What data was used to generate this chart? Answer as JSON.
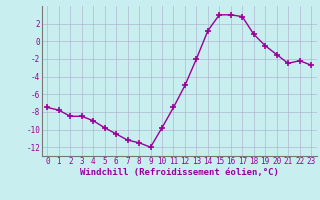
{
  "x": [
    0,
    1,
    2,
    3,
    4,
    5,
    6,
    7,
    8,
    9,
    10,
    11,
    12,
    13,
    14,
    15,
    16,
    17,
    18,
    19,
    20,
    21,
    22,
    23
  ],
  "y": [
    -7.5,
    -7.8,
    -8.5,
    -8.5,
    -9.0,
    -9.8,
    -10.5,
    -11.2,
    -11.5,
    -12.0,
    -9.8,
    -7.5,
    -5.0,
    -2.0,
    1.2,
    3.0,
    3.0,
    2.8,
    0.8,
    -0.5,
    -1.5,
    -2.5,
    -2.2,
    -2.7
  ],
  "line_color": "#990099",
  "marker": "+",
  "markersize": 4,
  "linewidth": 1.0,
  "bg_color": "#c8eef0",
  "grid_color": "#aaaacc",
  "xlabel": "Windchill (Refroidissement éolien,°C)",
  "xlabel_fontsize": 6.5,
  "tick_fontsize": 5.5,
  "xlim": [
    -0.5,
    23.5
  ],
  "ylim": [
    -13,
    4
  ],
  "yticks": [
    -12,
    -10,
    -8,
    -6,
    -4,
    -2,
    0,
    2
  ],
  "xticks": [
    0,
    1,
    2,
    3,
    4,
    5,
    6,
    7,
    8,
    9,
    10,
    11,
    12,
    13,
    14,
    15,
    16,
    17,
    18,
    19,
    20,
    21,
    22,
    23
  ]
}
